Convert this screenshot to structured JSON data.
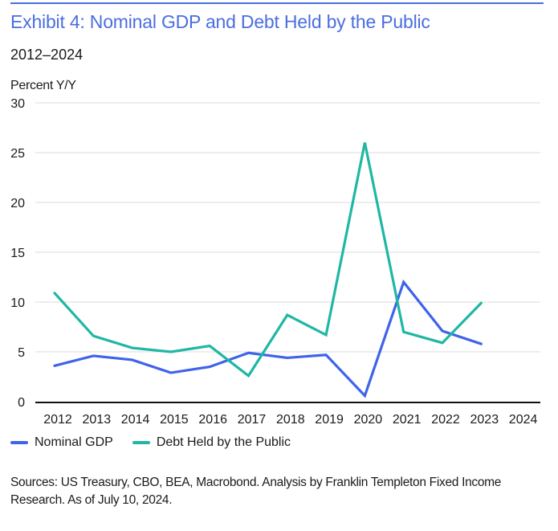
{
  "header": {
    "title": "Exhibit 4: Nominal GDP and Debt Held by the Public",
    "subtitle": "2012–2024",
    "y_unit_label": "Percent Y/Y"
  },
  "colors": {
    "title": "#4a6ee0",
    "nominal_gdp": "#3f63ea",
    "debt_held": "#1fb7a4",
    "grid": "#e2e2e2",
    "axis": "#111111"
  },
  "chart_data": {
    "type": "line",
    "title": "Exhibit 4: Nominal GDP and Debt Held by the Public",
    "subtitle": "2012–2024",
    "xlabel": "",
    "ylabel": "Percent Y/Y",
    "x": [
      2012,
      2013,
      2014,
      2015,
      2016,
      2017,
      2018,
      2019,
      2020,
      2021,
      2022,
      2023,
      2024
    ],
    "x_tick_labels": [
      "2012",
      "2013",
      "2014",
      "2015",
      "2016",
      "2017",
      "2018",
      "2019",
      "2020",
      "2021",
      "2022",
      "2023",
      "2024"
    ],
    "y_ticks": [
      0,
      5,
      10,
      15,
      20,
      25,
      30
    ],
    "y_tick_labels": [
      "0",
      "5",
      "10",
      "15",
      "20",
      "25",
      "30"
    ],
    "ylim": [
      0,
      30
    ],
    "grid": true,
    "legend_position": "bottom-left",
    "series": [
      {
        "name": "Nominal GDP",
        "color_key": "nominal_gdp",
        "values": [
          3.6,
          4.6,
          4.2,
          2.9,
          3.5,
          4.9,
          4.4,
          4.7,
          0.6,
          12.0,
          7.1,
          5.8,
          null
        ]
      },
      {
        "name": "Debt Held by the Public",
        "color_key": "debt_held",
        "values": [
          10.9,
          6.6,
          5.4,
          5.0,
          5.6,
          2.6,
          8.7,
          6.7,
          26.0,
          7.0,
          5.9,
          9.9,
          null
        ]
      }
    ]
  },
  "legend": {
    "items": [
      {
        "label": "Nominal GDP"
      },
      {
        "label": "Debt Held by the Public"
      }
    ]
  },
  "footer": {
    "source": "Sources: US Treasury, CBO, BEA, Macrobond. Analysis by Franklin Templeton Fixed Income Research. As of July 10, 2024."
  }
}
